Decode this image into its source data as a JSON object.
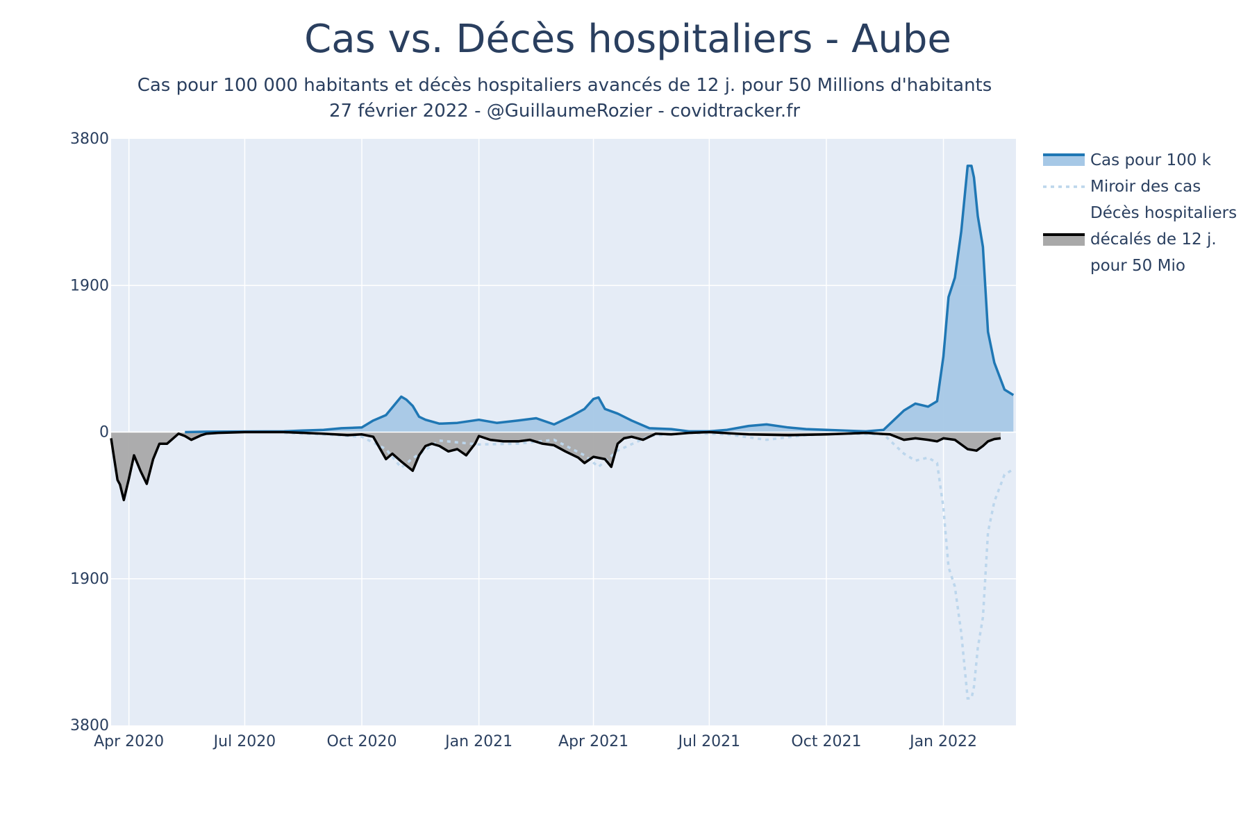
{
  "chart_data": {
    "type": "area",
    "title": "Cas vs. Décès hospitaliers - Aube",
    "subtitle_lines": [
      "Cas pour 100 000 habitants et décès hospitaliers avancés de 12 j. pour 50 Millions d'habitants",
      "27 février 2022 - @GuillaumeRozier - covidtracker.fr"
    ],
    "x_ticks": [
      "Apr 2020",
      "Jul 2020",
      "Oct 2020",
      "Jan 2021",
      "Apr 2021",
      "Jul 2021",
      "Oct 2021",
      "Jan 2022"
    ],
    "x_tick_dates": [
      "2020-04-01",
      "2020-07-01",
      "2020-10-01",
      "2021-01-01",
      "2021-04-01",
      "2021-07-01",
      "2021-10-01",
      "2022-01-01"
    ],
    "x_range": [
      "2020-03-18",
      "2022-02-27"
    ],
    "y_ticks": [
      {
        "value": 3800,
        "label": "3800"
      },
      {
        "value": 1900,
        "label": "1900"
      },
      {
        "value": 0,
        "label": "0"
      },
      {
        "value": -1900,
        "label": "1900"
      },
      {
        "value": -3800,
        "label": "3800"
      }
    ],
    "ylim": [
      -3800,
      3800
    ],
    "grid": true,
    "legend_position": "right",
    "series": [
      {
        "name": "Cas pour 100 k",
        "color": "#1f77b4",
        "fill": "#a6c8e6",
        "style": "area-line",
        "x": [
          "2020-05-15",
          "2020-06-01",
          "2020-07-01",
          "2020-08-01",
          "2020-08-15",
          "2020-09-01",
          "2020-09-15",
          "2020-10-01",
          "2020-10-10",
          "2020-10-20",
          "2020-11-01",
          "2020-11-05",
          "2020-11-10",
          "2020-11-15",
          "2020-11-20",
          "2020-12-01",
          "2020-12-15",
          "2021-01-01",
          "2021-01-15",
          "2021-02-01",
          "2021-02-15",
          "2021-03-01",
          "2021-03-15",
          "2021-03-25",
          "2021-04-01",
          "2021-04-05",
          "2021-04-10",
          "2021-04-20",
          "2021-05-01",
          "2021-05-15",
          "2021-06-01",
          "2021-06-15",
          "2021-07-01",
          "2021-07-15",
          "2021-08-01",
          "2021-08-15",
          "2021-09-01",
          "2021-09-15",
          "2021-10-01",
          "2021-10-15",
          "2021-11-01",
          "2021-11-15",
          "2021-12-01",
          "2021-12-10",
          "2021-12-20",
          "2021-12-27",
          "2022-01-01",
          "2022-01-05",
          "2022-01-10",
          "2022-01-15",
          "2022-01-20",
          "2022-01-23",
          "2022-01-25",
          "2022-01-28",
          "2022-02-01",
          "2022-02-05",
          "2022-02-10",
          "2022-02-18",
          "2022-02-25"
        ],
        "y": [
          0,
          5,
          8,
          10,
          20,
          30,
          50,
          60,
          150,
          220,
          460,
          420,
          340,
          200,
          160,
          110,
          120,
          160,
          120,
          150,
          180,
          100,
          210,
          300,
          430,
          450,
          300,
          240,
          150,
          50,
          40,
          10,
          10,
          30,
          80,
          100,
          60,
          40,
          30,
          20,
          10,
          30,
          280,
          370,
          330,
          400,
          980,
          1750,
          2000,
          2600,
          3450,
          3450,
          3300,
          2800,
          2400,
          1300,
          900,
          550,
          480
        ]
      },
      {
        "name": "Miroir des cas",
        "color": "#bcd6ec",
        "style": "dashed",
        "x": [
          "2020-08-01",
          "2020-09-01",
          "2020-10-01",
          "2020-10-20",
          "2020-11-01",
          "2020-11-10",
          "2020-12-01",
          "2021-01-01",
          "2021-02-01",
          "2021-03-01",
          "2021-03-25",
          "2021-04-05",
          "2021-04-20",
          "2021-05-15",
          "2021-06-15",
          "2021-07-15",
          "2021-08-15",
          "2021-09-15",
          "2021-10-15",
          "2021-11-15",
          "2021-12-01",
          "2021-12-10",
          "2021-12-20",
          "2021-12-27",
          "2022-01-01",
          "2022-01-05",
          "2022-01-10",
          "2022-01-15",
          "2022-01-20",
          "2022-01-23",
          "2022-01-25",
          "2022-01-28",
          "2022-02-01",
          "2022-02-05",
          "2022-02-10",
          "2022-02-18",
          "2022-02-25"
        ],
        "y": [
          -10,
          -30,
          -60,
          -220,
          -460,
          -340,
          -110,
          -160,
          -150,
          -100,
          -300,
          -450,
          -240,
          -50,
          -10,
          -30,
          -100,
          -40,
          -20,
          -30,
          -280,
          -370,
          -330,
          -400,
          -980,
          -1750,
          -2000,
          -2600,
          -3450,
          -3450,
          -3300,
          -2800,
          -2400,
          -1300,
          -900,
          -550,
          -480
        ]
      },
      {
        "name": "Décès hospitaliers décalés de 12 j. pour 50 Mio",
        "color": "#000000",
        "fill": "#a9a9a9",
        "style": "area-line",
        "x": [
          "2020-03-18",
          "2020-03-20",
          "2020-03-23",
          "2020-03-25",
          "2020-03-28",
          "2020-04-01",
          "2020-04-05",
          "2020-04-10",
          "2020-04-15",
          "2020-04-20",
          "2020-04-25",
          "2020-05-01",
          "2020-05-10",
          "2020-05-15",
          "2020-05-20",
          "2020-05-28",
          "2020-06-01",
          "2020-06-10",
          "2020-07-01",
          "2020-08-01",
          "2020-09-01",
          "2020-09-20",
          "2020-10-01",
          "2020-10-10",
          "2020-10-20",
          "2020-10-25",
          "2020-11-01",
          "2020-11-10",
          "2020-11-15",
          "2020-11-20",
          "2020-11-25",
          "2020-12-01",
          "2020-12-08",
          "2020-12-15",
          "2020-12-22",
          "2020-12-29",
          "2021-01-01",
          "2021-01-10",
          "2021-01-20",
          "2021-02-01",
          "2021-02-10",
          "2021-02-20",
          "2021-03-01",
          "2021-03-10",
          "2021-03-20",
          "2021-03-25",
          "2021-04-01",
          "2021-04-10",
          "2021-04-15",
          "2021-04-20",
          "2021-04-25",
          "2021-05-01",
          "2021-05-10",
          "2021-05-20",
          "2021-06-01",
          "2021-06-15",
          "2021-07-01",
          "2021-08-01",
          "2021-09-01",
          "2021-10-01",
          "2021-11-01",
          "2021-11-20",
          "2021-12-01",
          "2021-12-10",
          "2021-12-20",
          "2021-12-27",
          "2022-01-01",
          "2022-01-10",
          "2022-01-20",
          "2022-01-27",
          "2022-02-01",
          "2022-02-05",
          "2022-02-10",
          "2022-02-15"
        ],
        "y": [
          -80,
          -300,
          -620,
          -680,
          -880,
          -600,
          -300,
          -500,
          -670,
          -350,
          -150,
          -150,
          -20,
          -50,
          -100,
          -40,
          -20,
          -10,
          0,
          0,
          -20,
          -40,
          -30,
          -60,
          -350,
          -280,
          -380,
          -500,
          -300,
          -180,
          -150,
          -180,
          -250,
          -220,
          -300,
          -150,
          -50,
          -100,
          -120,
          -120,
          -100,
          -150,
          -170,
          -250,
          -330,
          -400,
          -320,
          -350,
          -450,
          -150,
          -80,
          -60,
          -100,
          -20,
          -30,
          -10,
          0,
          -30,
          -40,
          -30,
          -10,
          -30,
          -100,
          -80,
          -100,
          -120,
          -80,
          -100,
          -220,
          -240,
          -180,
          -120,
          -90,
          -80
        ]
      }
    ],
    "legend": [
      {
        "label_lines": [
          "Cas pour 100 k"
        ]
      },
      {
        "label_lines": [
          "Miroir des cas"
        ]
      },
      {
        "label_lines": [
          "Décès hospitaliers",
          "décalés de 12 j.",
          "pour 50 Mio"
        ]
      }
    ],
    "colors": {
      "plot_bg": "#e5ecf6",
      "grid": "#ffffff",
      "text": "#2a3f5f",
      "cases_line": "#1f77b4",
      "cases_fill": "#a6c8e6",
      "mirror_line": "#bcd6ec",
      "deaths_line": "#000000",
      "deaths_fill": "#a9a9a9"
    }
  }
}
